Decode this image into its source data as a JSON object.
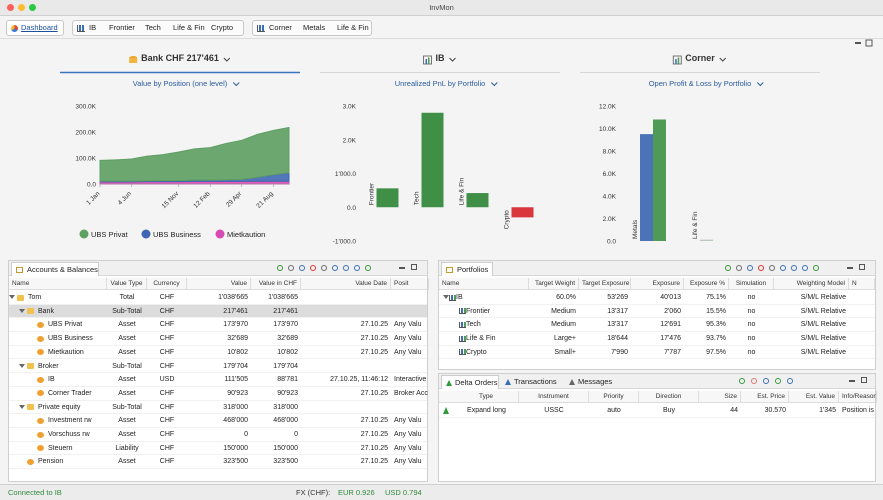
{
  "window_title": "InvMon",
  "toolbar": {
    "dashboard": "Dashboard",
    "group1": [
      "IB",
      "Frontier",
      "Tech",
      "Life & Fin",
      "Crypto"
    ],
    "group2": [
      "Corner",
      "Metals",
      "Life & Fin"
    ]
  },
  "panels": [
    {
      "title": "Bank CHF 217'461",
      "subtitle": "Value by Position (one level)"
    },
    {
      "title": "IB",
      "subtitle": "Unrealized PnL by Portfolio"
    },
    {
      "title": "Corner",
      "subtitle": "Open Profit & Loss by Portfolio"
    }
  ],
  "chart_data": [
    {
      "type": "area",
      "categories": [
        "1 Jan",
        null,
        "4 Jun",
        null,
        null,
        "15 Nov",
        null,
        "12 Feb",
        null,
        "29 Apr",
        null,
        "21 Aug",
        null
      ],
      "series": [
        {
          "name": "UBS Privat",
          "color": "#5e9f62",
          "values": [
            80000,
            82000,
            85000,
            95000,
            100000,
            110000,
            120000,
            125000,
            140000,
            150000,
            165000,
            170000,
            173970
          ]
        },
        {
          "name": "UBS Business",
          "color": "#3f68b2",
          "values": [
            3000,
            3000,
            3000,
            3000,
            4000,
            4000,
            5000,
            5000,
            6000,
            8000,
            15000,
            25000,
            32689
          ]
        },
        {
          "name": "Mietkaution",
          "color": "#d64bb3",
          "values": [
            8000,
            8000,
            8000,
            9000,
            9000,
            9000,
            10000,
            10000,
            10000,
            10000,
            10802,
            10802,
            10802
          ]
        }
      ],
      "ylim": [
        0,
        300000
      ],
      "yticks": [
        {
          "value": 0,
          "label": "0.0"
        },
        {
          "value": 100000,
          "label": "100.0K"
        },
        {
          "value": 200000,
          "label": "200.0K"
        },
        {
          "value": 300000,
          "label": "300.0K"
        }
      ]
    },
    {
      "type": "bar",
      "categories": [
        "Frontier",
        "Tech",
        "Life & Fin",
        "Crypto"
      ],
      "values": [
        560,
        2800,
        420,
        -300
      ],
      "colors": [
        "#3f8f47",
        "#3f8f47",
        "#3f8f47",
        "#d9363e"
      ],
      "ylim": [
        -1000,
        3000
      ],
      "yticks": [
        {
          "value": -1000,
          "label": "-1'000.0"
        },
        {
          "value": 0,
          "label": "0.0"
        },
        {
          "value": 1000,
          "label": "1'000.0"
        },
        {
          "value": 2000,
          "label": "2.0K"
        },
        {
          "value": 3000,
          "label": "3.0K"
        }
      ]
    },
    {
      "type": "groupbar",
      "categories": [
        "Metals",
        "Life & Fin"
      ],
      "series": [
        {
          "color": "#4a73b8",
          "values": [
            9500,
            null
          ]
        },
        {
          "color": "#4f9a55",
          "values": [
            10800,
            120
          ]
        }
      ],
      "ylim": [
        0,
        12000
      ],
      "yticks": [
        {
          "value": 0,
          "label": "0.0"
        },
        {
          "value": 2000,
          "label": "2.0K"
        },
        {
          "value": 4000,
          "label": "4.0K"
        },
        {
          "value": 6000,
          "label": "6.0K"
        },
        {
          "value": 8000,
          "label": "8.0K"
        },
        {
          "value": 10000,
          "label": "10.0K"
        },
        {
          "value": 12000,
          "label": "12.0K"
        }
      ]
    }
  ],
  "accounts": {
    "tab": "Accounts & Balances",
    "columns": [
      "Name",
      "Value Type",
      "Currency",
      "Value",
      "Value in CHF",
      "Value Date",
      "Posit"
    ],
    "rows": [
      [
        "Tom",
        "Total",
        "CHF",
        "1'038'665",
        "1'038'665",
        null,
        null
      ],
      [
        "Bank",
        "Sub-Total",
        "CHF",
        "217'461",
        "217'461",
        null,
        null
      ],
      [
        "UBS Privat",
        "Asset",
        "CHF",
        "173'970",
        "173'970",
        "27.10.25",
        "Any Valu"
      ],
      [
        "UBS Business",
        "Asset",
        "CHF",
        "32'689",
        "32'689",
        "27.10.25",
        "Any Valu"
      ],
      [
        "Mietkaution",
        "Asset",
        "CHF",
        "10'802",
        "10'802",
        "27.10.25",
        "Any Valu"
      ],
      [
        "Broker",
        "Sub-Total",
        "CHF",
        "179'704",
        "179'704",
        null,
        null
      ],
      [
        "IB",
        "Asset",
        "USD",
        "111'505",
        "88'781",
        "27.10.25, 11:46:12",
        "Interactive"
      ],
      [
        "Corner Trader",
        "Asset",
        "CHF",
        "90'923",
        "90'923",
        "27.10.25",
        "Broker Acc"
      ],
      [
        "Private equity",
        "Sub-Total",
        "CHF",
        "318'000",
        "318'000",
        null,
        null
      ],
      [
        "Investment rw",
        "Asset",
        "CHF",
        "468'000",
        "468'000",
        "27.10.25",
        "Any Valu"
      ],
      [
        "Vorschuss rw",
        "Asset",
        "CHF",
        "0",
        "0",
        "27.10.25",
        "Any Valu"
      ],
      [
        "Steuern",
        "Liability",
        "CHF",
        "150'000",
        "150'000",
        "27.10.25",
        "Any Valu"
      ],
      [
        "Pension",
        "Asset",
        "CHF",
        "323'500",
        "323'500",
        "27.10.25",
        "Any Valu"
      ]
    ]
  },
  "portfolios": {
    "tab": "Portfolios",
    "columns": [
      "Name",
      "Target Weight",
      "Target Exposure",
      "Exposure",
      "Exposure %",
      "Simulation",
      "Weighting Model",
      "N"
    ],
    "rows": [
      [
        "IB",
        "60.0%",
        "53'269",
        "40'013",
        "75.1%",
        "no",
        "S/M/L Relative"
      ],
      [
        "Frontier",
        "Medium",
        "13'317",
        "2'060",
        "15.5%",
        "no",
        "S/M/L Relative"
      ],
      [
        "Tech",
        "Medium",
        "13'317",
        "12'691",
        "95.3%",
        "no",
        "S/M/L Relative"
      ],
      [
        "Life & Fin",
        "Large+",
        "18'644",
        "17'476",
        "93.7%",
        "no",
        "S/M/L Relative"
      ],
      [
        "Crypto",
        "Small+",
        "7'990",
        "7'787",
        "97.5%",
        "no",
        "S/M/L Relative"
      ]
    ]
  },
  "orders": {
    "tabs": [
      "Delta Orders",
      "Transactions",
      "Messages"
    ],
    "columns": [
      "Type",
      "Instrument",
      "Priority",
      "Direction",
      "Size",
      "Est. Price",
      "Est. Value",
      "Info/Reason"
    ],
    "rows": [
      [
        "Expand long",
        "USSC",
        "auto",
        "Buy",
        "44",
        "30.570",
        "1'345",
        "Position is"
      ]
    ]
  },
  "status": {
    "connection": "Connected to IB",
    "fx_label": "FX (CHF):",
    "eur": "EUR 0.926",
    "usd": "USD 0.794"
  }
}
